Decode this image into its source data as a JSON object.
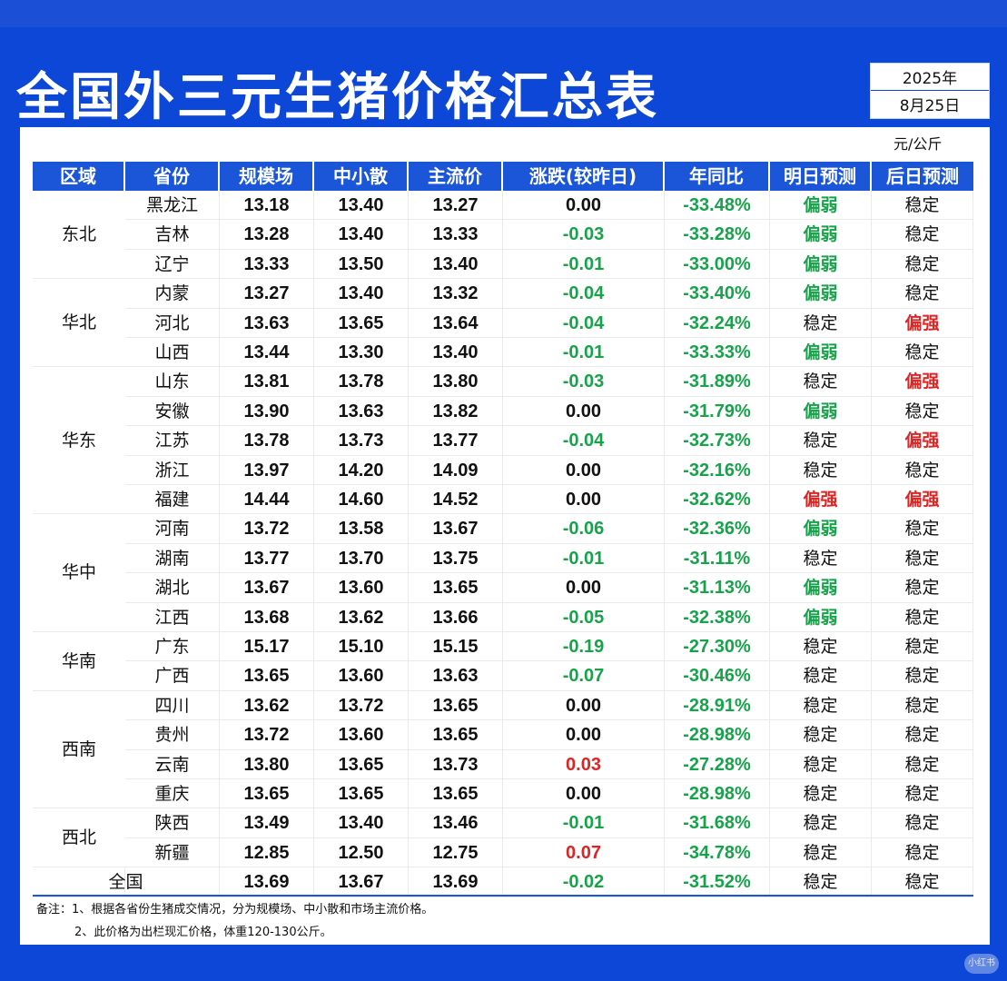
{
  "title": "全国外三元生猪价格汇总表",
  "date": {
    "year": "2025年",
    "day": "8月25日"
  },
  "unit": "元/公斤",
  "columns": [
    "区域",
    "省份",
    "规模场",
    "中小散",
    "主流价",
    "涨跌(较昨日)",
    "年同比",
    "明日预测",
    "后日预测"
  ],
  "regions": [
    {
      "name": "东北",
      "start": 0,
      "span": 3
    },
    {
      "name": "华北",
      "start": 3,
      "span": 3
    },
    {
      "name": "华东",
      "start": 6,
      "span": 5
    },
    {
      "name": "华中",
      "start": 11,
      "span": 4
    },
    {
      "name": "华南",
      "start": 15,
      "span": 2
    },
    {
      "name": "西南",
      "start": 17,
      "span": 4
    },
    {
      "name": "西北",
      "start": 21,
      "span": 2
    }
  ],
  "rows": [
    {
      "province": "黑龙江",
      "scale": "13.18",
      "small": "13.40",
      "main": "13.27",
      "change": "0.00",
      "yoy": "-33.48%",
      "tomorrow": "偏弱",
      "after": "稳定"
    },
    {
      "province": "吉林",
      "scale": "13.28",
      "small": "13.40",
      "main": "13.33",
      "change": "-0.03",
      "yoy": "-33.28%",
      "tomorrow": "偏弱",
      "after": "稳定"
    },
    {
      "province": "辽宁",
      "scale": "13.33",
      "small": "13.50",
      "main": "13.40",
      "change": "-0.01",
      "yoy": "-33.00%",
      "tomorrow": "偏弱",
      "after": "稳定"
    },
    {
      "province": "内蒙",
      "scale": "13.27",
      "small": "13.40",
      "main": "13.32",
      "change": "-0.04",
      "yoy": "-33.40%",
      "tomorrow": "偏弱",
      "after": "稳定"
    },
    {
      "province": "河北",
      "scale": "13.63",
      "small": "13.65",
      "main": "13.64",
      "change": "-0.04",
      "yoy": "-32.24%",
      "tomorrow": "稳定",
      "after": "偏强"
    },
    {
      "province": "山西",
      "scale": "13.44",
      "small": "13.30",
      "main": "13.40",
      "change": "-0.01",
      "yoy": "-33.33%",
      "tomorrow": "偏弱",
      "after": "稳定"
    },
    {
      "province": "山东",
      "scale": "13.81",
      "small": "13.78",
      "main": "13.80",
      "change": "-0.03",
      "yoy": "-31.89%",
      "tomorrow": "稳定",
      "after": "偏强"
    },
    {
      "province": "安徽",
      "scale": "13.90",
      "small": "13.63",
      "main": "13.82",
      "change": "0.00",
      "yoy": "-31.79%",
      "tomorrow": "偏弱",
      "after": "稳定"
    },
    {
      "province": "江苏",
      "scale": "13.78",
      "small": "13.73",
      "main": "13.77",
      "change": "-0.04",
      "yoy": "-32.73%",
      "tomorrow": "稳定",
      "after": "偏强"
    },
    {
      "province": "浙江",
      "scale": "13.97",
      "small": "14.20",
      "main": "14.09",
      "change": "0.00",
      "yoy": "-32.16%",
      "tomorrow": "稳定",
      "after": "稳定"
    },
    {
      "province": "福建",
      "scale": "14.44",
      "small": "14.60",
      "main": "14.52",
      "change": "0.00",
      "yoy": "-32.62%",
      "tomorrow": "偏强",
      "after": "偏强"
    },
    {
      "province": "河南",
      "scale": "13.72",
      "small": "13.58",
      "main": "13.67",
      "change": "-0.06",
      "yoy": "-32.36%",
      "tomorrow": "偏弱",
      "after": "稳定"
    },
    {
      "province": "湖南",
      "scale": "13.77",
      "small": "13.70",
      "main": "13.75",
      "change": "-0.01",
      "yoy": "-31.11%",
      "tomorrow": "稳定",
      "after": "稳定"
    },
    {
      "province": "湖北",
      "scale": "13.67",
      "small": "13.60",
      "main": "13.65",
      "change": "0.00",
      "yoy": "-31.13%",
      "tomorrow": "偏弱",
      "after": "稳定"
    },
    {
      "province": "江西",
      "scale": "13.68",
      "small": "13.62",
      "main": "13.66",
      "change": "-0.05",
      "yoy": "-32.38%",
      "tomorrow": "偏弱",
      "after": "稳定"
    },
    {
      "province": "广东",
      "scale": "15.17",
      "small": "15.10",
      "main": "15.15",
      "change": "-0.19",
      "yoy": "-27.30%",
      "tomorrow": "稳定",
      "after": "稳定"
    },
    {
      "province": "广西",
      "scale": "13.65",
      "small": "13.60",
      "main": "13.63",
      "change": "-0.07",
      "yoy": "-30.46%",
      "tomorrow": "稳定",
      "after": "稳定"
    },
    {
      "province": "四川",
      "scale": "13.62",
      "small": "13.72",
      "main": "13.65",
      "change": "0.00",
      "yoy": "-28.91%",
      "tomorrow": "稳定",
      "after": "稳定"
    },
    {
      "province": "贵州",
      "scale": "13.72",
      "small": "13.60",
      "main": "13.65",
      "change": "0.00",
      "yoy": "-28.98%",
      "tomorrow": "稳定",
      "after": "稳定"
    },
    {
      "province": "云南",
      "scale": "13.80",
      "small": "13.65",
      "main": "13.73",
      "change": "0.03",
      "yoy": "-27.28%",
      "tomorrow": "稳定",
      "after": "稳定"
    },
    {
      "province": "重庆",
      "scale": "13.65",
      "small": "13.65",
      "main": "13.65",
      "change": "0.00",
      "yoy": "-28.98%",
      "tomorrow": "稳定",
      "after": "稳定"
    },
    {
      "province": "陕西",
      "scale": "13.49",
      "small": "13.40",
      "main": "13.46",
      "change": "-0.01",
      "yoy": "-31.68%",
      "tomorrow": "稳定",
      "after": "稳定"
    },
    {
      "province": "新疆",
      "scale": "12.85",
      "small": "12.50",
      "main": "12.75",
      "change": "0.07",
      "yoy": "-34.78%",
      "tomorrow": "稳定",
      "after": "稳定"
    }
  ],
  "national": {
    "label": "全国",
    "scale": "13.69",
    "small": "13.67",
    "main": "13.69",
    "change": "-0.02",
    "yoy": "-31.52%",
    "tomorrow": "稳定",
    "after": "稳定"
  },
  "notes": [
    "备注：1、根据各省份生猪成交情况，分为规模场、中小散和市场主流价格。",
    "2、此价格为出栏现汇价格，体重120-130公斤。"
  ],
  "watermark": "小红书",
  "colors": {
    "blue": "#0d47d8",
    "green": "#16a34a",
    "red": "#dc2626"
  }
}
